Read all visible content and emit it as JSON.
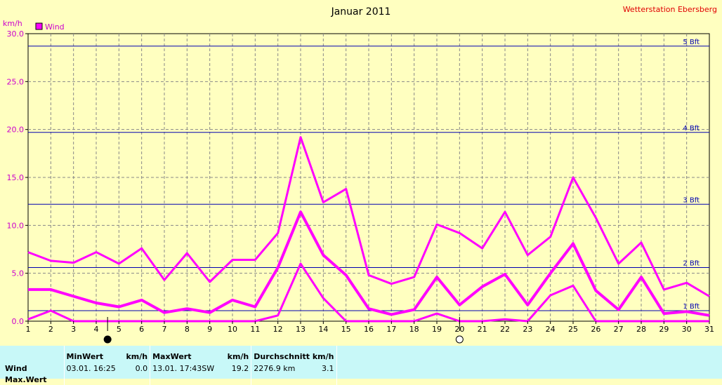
{
  "title": "Januar 2011",
  "station": "Wetterstation Ebersberg",
  "unit_label": "km/h",
  "legend_label": "Wind",
  "colors": {
    "plot_bg": "#ffffc0",
    "series": "#ff00ff",
    "bft_line": "#0000b0",
    "bft_label": "#0000b0",
    "station": "#e00000",
    "grid": "#888888",
    "table_bg": "#c8f8f8"
  },
  "moon_phases": [
    {
      "day": 4.5,
      "phase": "new-moon"
    },
    {
      "day": 20,
      "phase": "full-moon"
    }
  ],
  "chart_data": {
    "type": "line",
    "x": [
      1,
      2,
      3,
      4,
      5,
      6,
      7,
      8,
      9,
      10,
      11,
      12,
      13,
      14,
      15,
      16,
      17,
      18,
      19,
      20,
      21,
      22,
      23,
      24,
      25,
      26,
      27,
      28,
      29,
      30,
      31
    ],
    "xlim": [
      1,
      31
    ],
    "ylim": [
      0,
      30
    ],
    "y_ticks": [
      "0.0",
      "5.0",
      "10.0",
      "15.0",
      "20.0",
      "25.0",
      "30.0"
    ],
    "grid": true,
    "legend": "top-left",
    "series": [
      {
        "role": "max",
        "values": [
          7.2,
          6.3,
          6.1,
          7.2,
          6.0,
          7.6,
          4.3,
          7.1,
          4.1,
          6.4,
          6.4,
          9.2,
          19.2,
          12.4,
          13.8,
          4.8,
          3.9,
          4.6,
          10.1,
          9.2,
          7.6,
          11.4,
          6.9,
          8.8,
          15.0,
          10.8,
          6.0,
          8.2,
          3.3,
          4.0,
          2.6
        ]
      },
      {
        "role": "avg",
        "values": [
          3.3,
          3.3,
          2.6,
          1.9,
          1.5,
          2.2,
          0.9,
          1.3,
          0.9,
          2.2,
          1.5,
          5.6,
          11.4,
          6.9,
          4.8,
          1.3,
          0.7,
          1.2,
          4.6,
          1.7,
          3.6,
          4.9,
          1.7,
          5.0,
          8.1,
          3.2,
          1.2,
          4.6,
          0.8,
          1.0,
          0.6
        ]
      },
      {
        "role": "min",
        "values": [
          0.2,
          1.1,
          0,
          0,
          0,
          0,
          0,
          0,
          0,
          0,
          0,
          0.6,
          6.0,
          2.4,
          0,
          0,
          0,
          0,
          0.8,
          0,
          0,
          0.2,
          0,
          2.7,
          3.7,
          0,
          0,
          0,
          0,
          0,
          0
        ]
      }
    ],
    "beaufort_lines": [
      {
        "label": "1 Bft",
        "value": 1.1
      },
      {
        "label": "2 Bft",
        "value": 5.6
      },
      {
        "label": "3 Bft",
        "value": 12.2
      },
      {
        "label": "4 Bft",
        "value": 19.7
      },
      {
        "label": "5 Bft",
        "value": 28.7
      }
    ]
  },
  "stats": {
    "headers": {
      "min": "MinWert",
      "min_unit": "km/h",
      "max": "MaxWert",
      "max_unit": "km/h",
      "avg": "Durchschnitt km/h"
    },
    "rows": [
      {
        "label": "Wind",
        "min_time": "03.01.  16:25",
        "min_val": "0.0",
        "max_time": "13.01.  17:43",
        "max_dir": "SW",
        "max_val": "19.2",
        "avg_total": "2276.9 km",
        "avg_val": "3.1"
      }
    ],
    "cut_row_label": "Max.Wert"
  }
}
